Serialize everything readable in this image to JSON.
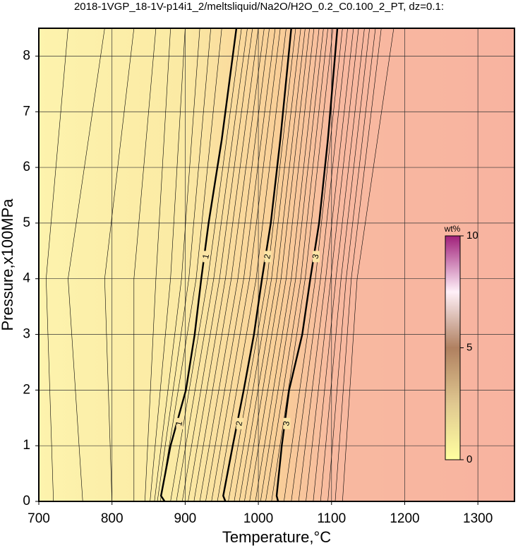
{
  "chart_data": {
    "type": "contour",
    "title": "2018-1VGP_18-1V-p14i1_2/meltsliquid/Na2O/H2O_0.2_C0.100_2_PT, dz=0.1:",
    "x_label": "Temperature,°C",
    "y_label": "Pressure,x100MPa",
    "xlim": [
      700,
      1350
    ],
    "ylim": [
      0,
      8.5
    ],
    "xticks": [
      700,
      800,
      900,
      1000,
      1100,
      1200,
      1300
    ],
    "yticks": [
      0,
      1,
      2,
      3,
      4,
      5,
      6,
      7,
      8
    ],
    "grid": true,
    "colorbar": {
      "label": "wt%",
      "lim": [
        0,
        10
      ],
      "ticks": [
        0,
        5,
        10
      ]
    },
    "major_contours": [
      {
        "level": 1,
        "x": [
          872,
          867,
          880,
          901,
          913,
          922,
          932,
          950,
          970
        ],
        "y": [
          0,
          0.1,
          1,
          2,
          3,
          4,
          5,
          6.5,
          8.5
        ]
      },
      {
        "level": 2,
        "x": [
          955,
          952,
          965,
          980,
          994,
          1005,
          1017,
          1030,
          1045
        ],
        "y": [
          0,
          0.1,
          1,
          2,
          3,
          4,
          5,
          6.5,
          8.5
        ]
      },
      {
        "level": 3,
        "x": [
          1027,
          1025,
          1032,
          1042,
          1060,
          1071,
          1083,
          1095,
          1108
        ],
        "y": [
          0,
          0.1,
          1,
          2,
          3,
          4,
          5,
          6.5,
          8.5
        ]
      }
    ],
    "minor_contours": [
      {
        "level": 0.1,
        "x": [
          720,
          710,
          740
        ],
        "y": [
          0,
          4,
          8.5
        ]
      },
      {
        "level": 0.2,
        "x": [
          760,
          740,
          790
        ],
        "y": [
          0,
          4,
          8.5
        ]
      },
      {
        "level": 0.3,
        "x": [
          800,
          790,
          830
        ],
        "y": [
          0,
          4,
          8.5
        ]
      },
      {
        "level": 0.4,
        "x": [
          830,
          830,
          860
        ],
        "y": [
          0,
          4,
          8.5
        ]
      },
      {
        "level": 0.5,
        "x": [
          845,
          860,
          880
        ],
        "y": [
          0,
          4,
          8.5
        ]
      },
      {
        "level": 0.6,
        "x": [
          852,
          880,
          900
        ],
        "y": [
          0,
          4,
          8.5
        ]
      },
      {
        "level": 0.7,
        "x": [
          858,
          895,
          920
        ],
        "y": [
          0,
          4,
          8.5
        ]
      },
      {
        "level": 0.8,
        "x": [
          862,
          905,
          935
        ],
        "y": [
          0,
          4,
          8.5
        ]
      },
      {
        "level": 0.9,
        "x": [
          866,
          915,
          950
        ],
        "y": [
          0,
          4,
          8.5
        ]
      },
      {
        "level": 1.1,
        "x": [
          880,
          931,
          977
        ],
        "y": [
          0,
          4,
          8.5
        ]
      },
      {
        "level": 1.2,
        "x": [
          888,
          939,
          985
        ],
        "y": [
          0,
          4,
          8.5
        ]
      },
      {
        "level": 1.3,
        "x": [
          896,
          947,
          992
        ],
        "y": [
          0,
          4,
          8.5
        ]
      },
      {
        "level": 1.4,
        "x": [
          904,
          955,
          1000
        ],
        "y": [
          0,
          4,
          8.5
        ]
      },
      {
        "level": 1.5,
        "x": [
          912,
          963,
          1008
        ],
        "y": [
          0,
          4,
          8.5
        ]
      },
      {
        "level": 1.6,
        "x": [
          920,
          972,
          1015
        ],
        "y": [
          0,
          4,
          8.5
        ]
      },
      {
        "level": 1.7,
        "x": [
          928,
          980,
          1023
        ],
        "y": [
          0,
          4,
          8.5
        ]
      },
      {
        "level": 1.8,
        "x": [
          936,
          988,
          1030
        ],
        "y": [
          0,
          4,
          8.5
        ]
      },
      {
        "level": 1.9,
        "x": [
          944,
          997,
          1038
        ],
        "y": [
          0,
          4,
          8.5
        ]
      },
      {
        "level": 2.1,
        "x": [
          959,
          1012,
          1051
        ],
        "y": [
          0,
          4,
          8.5
        ]
      },
      {
        "level": 2.2,
        "x": [
          967,
          1018,
          1058
        ],
        "y": [
          0,
          4,
          8.5
        ]
      },
      {
        "level": 2.3,
        "x": [
          974,
          1025,
          1064
        ],
        "y": [
          0,
          4,
          8.5
        ]
      },
      {
        "level": 2.4,
        "x": [
          981,
          1031,
          1070
        ],
        "y": [
          0,
          4,
          8.5
        ]
      },
      {
        "level": 2.5,
        "x": [
          988,
          1038,
          1076
        ],
        "y": [
          0,
          4,
          8.5
        ]
      },
      {
        "level": 2.6,
        "x": [
          996,
          1045,
          1083
        ],
        "y": [
          0,
          4,
          8.5
        ]
      },
      {
        "level": 2.7,
        "x": [
          1003,
          1051,
          1089
        ],
        "y": [
          0,
          4,
          8.5
        ]
      },
      {
        "level": 2.8,
        "x": [
          1010,
          1058,
          1095
        ],
        "y": [
          0,
          4,
          8.5
        ]
      },
      {
        "level": 2.9,
        "x": [
          1018,
          1064,
          1102
        ],
        "y": [
          0,
          4,
          8.5
        ]
      },
      {
        "level": 3.1,
        "x": [
          1035,
          1078,
          1115
        ],
        "y": [
          0,
          4,
          8.5
        ]
      },
      {
        "level": 3.2,
        "x": [
          1045,
          1085,
          1122
        ],
        "y": [
          0,
          4,
          8.5
        ]
      },
      {
        "level": 3.3,
        "x": [
          1055,
          1092,
          1130
        ],
        "y": [
          0,
          4,
          8.5
        ]
      },
      {
        "level": 3.4,
        "x": [
          1065,
          1099,
          1137
        ],
        "y": [
          0,
          4,
          8.5
        ]
      },
      {
        "level": 3.5,
        "x": [
          1075,
          1106,
          1145
        ],
        "y": [
          0,
          4,
          8.5
        ]
      },
      {
        "level": 3.6,
        "x": [
          1085,
          1113,
          1152
        ],
        "y": [
          0,
          4,
          8.5
        ]
      },
      {
        "level": 3.7,
        "x": [
          1095,
          1120,
          1160
        ],
        "y": [
          0,
          4,
          8.5
        ]
      },
      {
        "level": 3.8,
        "x": [
          1105,
          1127,
          1168
        ],
        "y": [
          0,
          4,
          8.5
        ]
      },
      {
        "level": 3.9,
        "x": [
          1115,
          1135,
          1185
        ],
        "y": [
          0,
          4,
          8.5
        ]
      }
    ]
  }
}
